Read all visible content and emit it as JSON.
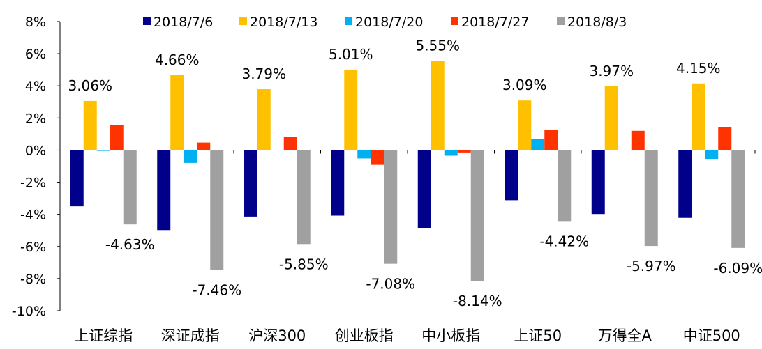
{
  "chart_data": {
    "type": "bar",
    "title": "",
    "xlabel": "",
    "ylabel": "",
    "ylim": [
      -10,
      8
    ],
    "y_ticks": [
      8,
      6,
      4,
      2,
      0,
      -2,
      -4,
      -6,
      -8,
      -10
    ],
    "y_tick_labels": [
      "8%",
      "6%",
      "4%",
      "2%",
      "0%",
      "-2%",
      "-4%",
      "-6%",
      "-8%",
      "-10%"
    ],
    "legend_position": "top",
    "categories": [
      "上证综指",
      "深证成指",
      "沪深300",
      "创业板指",
      "中小板指",
      "上证50",
      "万得全A",
      "中证500"
    ],
    "series": [
      {
        "name": "2018/7/6",
        "color": "#00008B",
        "values": [
          -3.5,
          -4.98,
          -4.14,
          -4.08,
          -4.88,
          -3.12,
          -3.98,
          -4.22
        ]
      },
      {
        "name": "2018/7/13",
        "color": "#FFC000",
        "values": [
          3.06,
          4.66,
          3.79,
          5.01,
          5.55,
          3.09,
          3.97,
          4.15
        ]
      },
      {
        "name": "2018/7/20",
        "color": "#00B0F0",
        "values": [
          -0.05,
          -0.8,
          -0.02,
          -0.52,
          -0.35,
          0.68,
          -0.02,
          -0.55
        ]
      },
      {
        "name": "2018/7/27",
        "color": "#FF3300",
        "values": [
          1.58,
          0.47,
          0.8,
          -0.92,
          -0.15,
          1.25,
          1.2,
          1.42
        ]
      },
      {
        "name": "2018/8/3",
        "color": "#A0A0A0",
        "values": [
          -4.63,
          -7.46,
          -5.85,
          -7.08,
          -8.14,
          -4.42,
          -5.97,
          -6.09
        ]
      }
    ],
    "data_labels": [
      {
        "category": 0,
        "series": 1,
        "text": "3.06%"
      },
      {
        "category": 1,
        "series": 1,
        "text": "4.66%"
      },
      {
        "category": 2,
        "series": 1,
        "text": "3.79%"
      },
      {
        "category": 3,
        "series": 1,
        "text": "5.01%"
      },
      {
        "category": 4,
        "series": 1,
        "text": "5.55%"
      },
      {
        "category": 5,
        "series": 1,
        "text": "3.09%"
      },
      {
        "category": 6,
        "series": 1,
        "text": "3.97%"
      },
      {
        "category": 7,
        "series": 1,
        "text": "4.15%"
      },
      {
        "category": 0,
        "series": 4,
        "text": "-4.63%"
      },
      {
        "category": 1,
        "series": 4,
        "text": "-7.46%"
      },
      {
        "category": 2,
        "series": 4,
        "text": "-5.85%"
      },
      {
        "category": 3,
        "series": 4,
        "text": "-7.08%"
      },
      {
        "category": 4,
        "series": 4,
        "text": "-8.14%"
      },
      {
        "category": 5,
        "series": 4,
        "text": "-4.42%"
      },
      {
        "category": 6,
        "series": 4,
        "text": "-5.97%"
      },
      {
        "category": 7,
        "series": 4,
        "text": "-6.09%"
      }
    ]
  }
}
